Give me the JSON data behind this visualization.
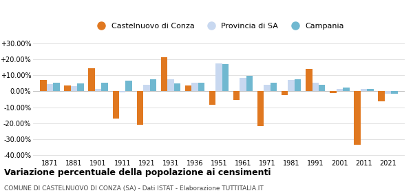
{
  "years": [
    1871,
    1881,
    1901,
    1911,
    1921,
    1931,
    1936,
    1951,
    1961,
    1971,
    1981,
    1991,
    2001,
    2011,
    2021
  ],
  "castelnuovo": [
    7.0,
    3.5,
    14.5,
    -17.0,
    -21.0,
    21.5,
    3.5,
    -8.5,
    -5.5,
    -22.0,
    -2.5,
    14.0,
    -1.0,
    -33.5,
    -6.5
  ],
  "provincia": [
    4.5,
    3.0,
    1.5,
    -0.5,
    4.0,
    7.5,
    5.5,
    17.5,
    8.5,
    4.0,
    7.0,
    5.5,
    1.5,
    1.5,
    -1.5
  ],
  "campania": [
    5.5,
    5.0,
    5.5,
    6.5,
    7.5,
    5.0,
    5.5,
    17.0,
    9.5,
    5.5,
    7.5,
    4.0,
    2.5,
    1.5,
    -1.5
  ],
  "castelnuovo_color": "#e07820",
  "provincia_color": "#c8d8f0",
  "campania_color": "#70b8d0",
  "title": "Variazione percentuale della popolazione ai censimenti",
  "subtitle": "COMUNE DI CASTELNUOVO DI CONZA (SA) - Dati ISTAT - Elaborazione TUTTITALIA.IT",
  "legend_labels": [
    "Castelnuovo di Conza",
    "Provincia di SA",
    "Campania"
  ],
  "yticks": [
    -40,
    -30,
    -20,
    -10,
    0,
    10,
    20,
    30
  ],
  "ytick_labels": [
    "-40.00%",
    "-30.00%",
    "-20.00%",
    "-10.00%",
    "0.00%",
    "+10.00%",
    "+20.00%",
    "+30.00%"
  ],
  "ylim": [
    -42,
    33
  ],
  "background_color": "#ffffff",
  "grid_color": "#dddddd"
}
